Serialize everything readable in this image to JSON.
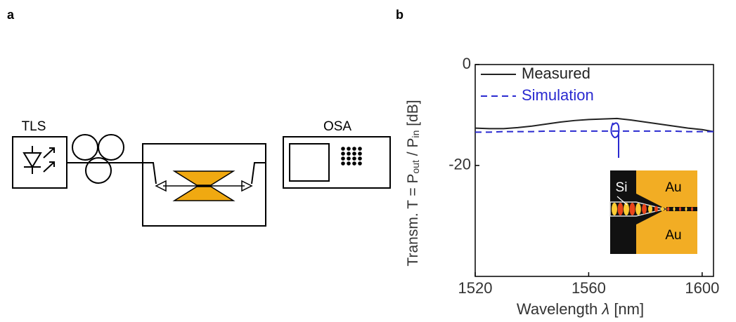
{
  "panels": {
    "a": {
      "label": "a",
      "source": "TLS",
      "analyzer": "OSA"
    },
    "b": {
      "label": "b"
    }
  },
  "chart_data": {
    "type": "line",
    "xlabel": [
      "Wavelength ",
      "λ",
      " [nm]"
    ],
    "ylabel": [
      "Transm. T = P",
      "out",
      " / P",
      "in",
      " [dB]"
    ],
    "x": [
      1520,
      1525,
      1530,
      1535,
      1540,
      1545,
      1550,
      1555,
      1560,
      1565,
      1570,
      1575,
      1580,
      1585,
      1590,
      1595,
      1600,
      1604
    ],
    "series": [
      {
        "name": "Measured",
        "color": "#222222",
        "dash": false,
        "values": [
          -12.6,
          -12.7,
          -12.7,
          -12.5,
          -12.2,
          -11.8,
          -11.4,
          -11.1,
          -10.9,
          -10.8,
          -10.7,
          -11.0,
          -11.4,
          -11.8,
          -12.2,
          -12.6,
          -12.9,
          -13.3
        ]
      },
      {
        "name": "Simulation",
        "color": "#2a2ad0",
        "dash": true,
        "values": [
          -13.4,
          -13.4,
          -13.3,
          -13.3,
          -13.3,
          -13.2,
          -13.2,
          -13.2,
          -13.2,
          -13.2,
          -13.2,
          -13.2,
          -13.2,
          -13.2,
          -13.2,
          -13.3,
          -13.3,
          -13.3
        ]
      }
    ],
    "xlim": [
      1520,
      1604
    ],
    "ylim": [
      -42,
      0
    ],
    "xticks": [
      1520,
      1560,
      1600
    ],
    "yticks": [
      0,
      -20
    ],
    "inset_labels": [
      "Si",
      "Au",
      "Au"
    ]
  }
}
